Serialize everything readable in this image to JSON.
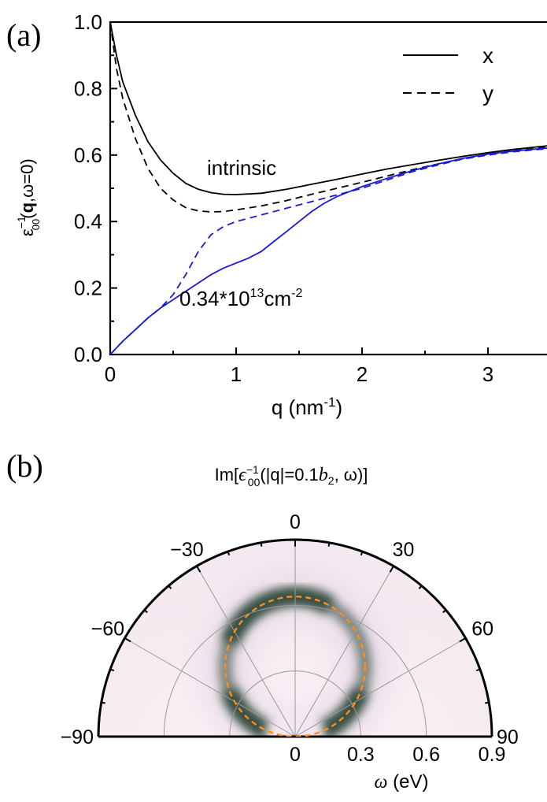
{
  "chart_data": [
    {
      "type": "line",
      "panel_label": "(a)",
      "xlabel": {
        "base": "q (nm",
        "sup": "-1",
        "end": ")"
      },
      "ylabel": {
        "eps": "ε",
        "sup": "−1",
        "sub": "00",
        "open": "(",
        "bold": "q",
        "rest": ",ω=0)"
      },
      "xlim": [
        0,
        3.5
      ],
      "ylim": [
        0,
        1.0
      ],
      "xticks": [
        0,
        1,
        2,
        3
      ],
      "yticks": [
        "0.0",
        "0.2",
        "0.4",
        "0.6",
        "0.8",
        "1.0"
      ],
      "legend_position": "top-right",
      "legend": [
        {
          "label": "x",
          "dash": "solid"
        },
        {
          "label": "y",
          "dash": "dashed"
        }
      ],
      "annotations": {
        "intrinsic": "intrinsic",
        "doped_base": "0.34*10",
        "doped_sup": "13",
        "doped_unit": "cm",
        "doped_unit_sup": "-2"
      },
      "series": [
        {
          "name": "x",
          "group": "intrinsic",
          "color": "#000000",
          "dash": "solid",
          "points": [
            [
              0,
              1.0
            ],
            [
              0.05,
              0.9
            ],
            [
              0.1,
              0.82
            ],
            [
              0.2,
              0.72
            ],
            [
              0.3,
              0.64
            ],
            [
              0.4,
              0.585
            ],
            [
              0.5,
              0.545
            ],
            [
              0.6,
              0.515
            ],
            [
              0.7,
              0.497
            ],
            [
              0.8,
              0.487
            ],
            [
              0.9,
              0.482
            ],
            [
              1.0,
              0.481
            ],
            [
              1.2,
              0.485
            ],
            [
              1.4,
              0.497
            ],
            [
              1.6,
              0.512
            ],
            [
              1.8,
              0.527
            ],
            [
              2.0,
              0.543
            ],
            [
              2.2,
              0.558
            ],
            [
              2.4,
              0.571
            ],
            [
              2.6,
              0.584
            ],
            [
              2.8,
              0.596
            ],
            [
              3.0,
              0.607
            ],
            [
              3.2,
              0.617
            ],
            [
              3.5,
              0.629
            ]
          ]
        },
        {
          "name": "y",
          "group": "intrinsic",
          "color": "#000000",
          "dash": "dashed",
          "points": [
            [
              0,
              1.0
            ],
            [
              0.05,
              0.86
            ],
            [
              0.1,
              0.77
            ],
            [
              0.2,
              0.65
            ],
            [
              0.3,
              0.56
            ],
            [
              0.4,
              0.5
            ],
            [
              0.5,
              0.465
            ],
            [
              0.6,
              0.442
            ],
            [
              0.7,
              0.432
            ],
            [
              0.8,
              0.429
            ],
            [
              0.9,
              0.43
            ],
            [
              1.0,
              0.435
            ],
            [
              1.2,
              0.447
            ],
            [
              1.4,
              0.463
            ],
            [
              1.6,
              0.482
            ],
            [
              1.8,
              0.5
            ],
            [
              2.0,
              0.518
            ],
            [
              2.2,
              0.537
            ],
            [
              2.4,
              0.556
            ],
            [
              2.6,
              0.573
            ],
            [
              2.8,
              0.589
            ],
            [
              3.0,
              0.602
            ],
            [
              3.2,
              0.613
            ],
            [
              3.5,
              0.625
            ]
          ]
        },
        {
          "name": "x",
          "group": "doped",
          "color": "#1a1ad4",
          "dash": "solid",
          "points": [
            [
              0,
              0.0
            ],
            [
              0.1,
              0.04
            ],
            [
              0.2,
              0.075
            ],
            [
              0.3,
              0.11
            ],
            [
              0.4,
              0.14
            ],
            [
              0.5,
              0.165
            ],
            [
              0.6,
              0.19
            ],
            [
              0.7,
              0.215
            ],
            [
              0.8,
              0.24
            ],
            [
              0.9,
              0.26
            ],
            [
              1.0,
              0.275
            ],
            [
              1.1,
              0.29
            ],
            [
              1.2,
              0.31
            ],
            [
              1.3,
              0.34
            ],
            [
              1.4,
              0.37
            ],
            [
              1.5,
              0.4
            ],
            [
              1.6,
              0.43
            ],
            [
              1.7,
              0.455
            ],
            [
              1.8,
              0.475
            ],
            [
              1.9,
              0.49
            ],
            [
              2.0,
              0.505
            ],
            [
              2.2,
              0.53
            ],
            [
              2.4,
              0.553
            ],
            [
              2.6,
              0.573
            ],
            [
              2.8,
              0.59
            ],
            [
              3.0,
              0.603
            ],
            [
              3.2,
              0.612
            ],
            [
              3.5,
              0.622
            ]
          ]
        },
        {
          "name": "y",
          "group": "doped",
          "color": "#1a1ad4",
          "dash": "dashed",
          "points": [
            [
              0,
              0.0
            ],
            [
              0.1,
              0.04
            ],
            [
              0.2,
              0.075
            ],
            [
              0.3,
              0.11
            ],
            [
              0.4,
              0.14
            ],
            [
              0.5,
              0.18
            ],
            [
              0.6,
              0.24
            ],
            [
              0.7,
              0.31
            ],
            [
              0.8,
              0.36
            ],
            [
              0.9,
              0.385
            ],
            [
              1.0,
              0.4
            ],
            [
              1.2,
              0.42
            ],
            [
              1.4,
              0.44
            ],
            [
              1.6,
              0.46
            ],
            [
              1.8,
              0.48
            ],
            [
              2.0,
              0.5
            ],
            [
              2.2,
              0.525
            ],
            [
              2.4,
              0.55
            ],
            [
              2.6,
              0.57
            ],
            [
              2.8,
              0.588
            ],
            [
              3.0,
              0.6
            ],
            [
              3.2,
              0.61
            ],
            [
              3.5,
              0.62
            ]
          ]
        }
      ]
    },
    {
      "type": "heatmap",
      "projection": "polar-half",
      "panel_label": "(b)",
      "title": {
        "pre": "Im[",
        "eps": "ϵ",
        "sub": "00",
        "sup": "−1",
        "mid": "(|q|=0.1",
        "b": "b",
        "bsub": "2",
        "end": ", ω)]"
      },
      "angle_ticks": [
        "−90",
        "−60",
        "−30",
        "0",
        "30",
        "60",
        "90"
      ],
      "angle_values": [
        -90,
        -60,
        -30,
        0,
        30,
        60,
        90
      ],
      "radial_ticks": [
        "0",
        "0.3",
        "0.6",
        "0.9"
      ],
      "radial_values": [
        0,
        0.3,
        0.6,
        0.9
      ],
      "rmax": 0.9,
      "xlabel": {
        "omega": "ω",
        "unit": " (eV)"
      },
      "colormap": [
        "#ffffff",
        "#e9dce6",
        "#1e3a2c"
      ],
      "plasmon_peak": {
        "center_r": 0.32,
        "center_angle": 0,
        "radius": 0.32,
        "color": "#ff8c1a",
        "dash": "dashed"
      },
      "peak_intensity": {
        "top": 0.55,
        "sides": 1.0,
        "bottom_gap_deg": 40
      }
    }
  ]
}
